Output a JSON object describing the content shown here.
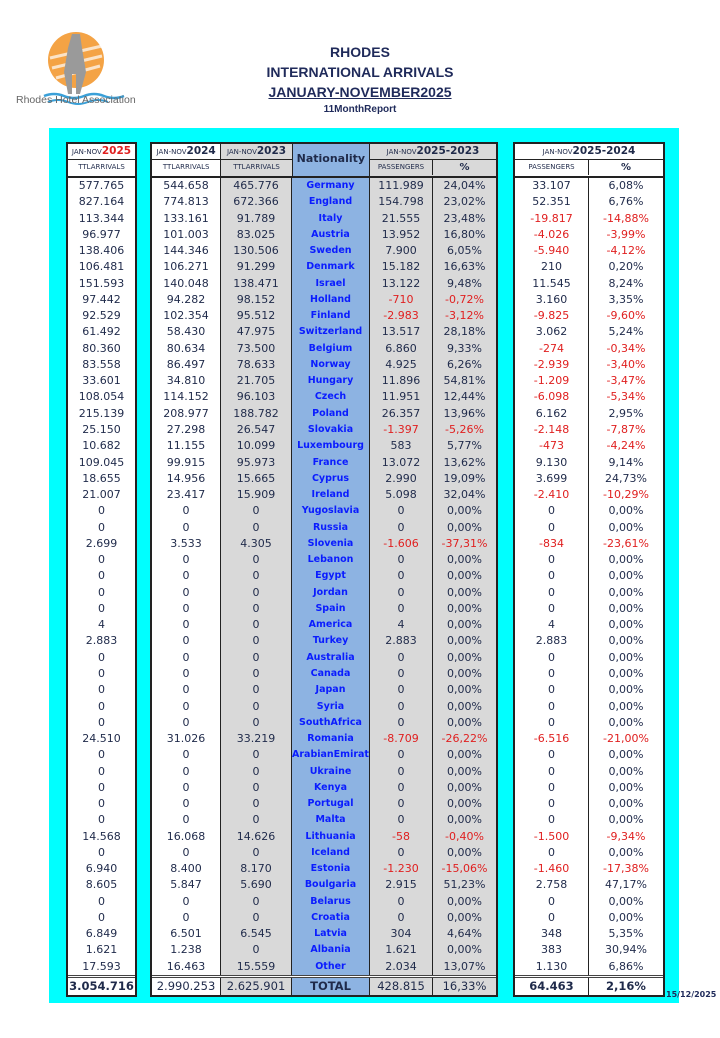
{
  "header": {
    "logo_text": "Rhodes Hotel Association",
    "title1": "RHODES",
    "title2": "INTERNATIONAL ARRIVALS",
    "title3": "JANUARY-NOVEMBER2025",
    "subtitle": "11MonthReport"
  },
  "columns": {
    "prefix": "JAN-NOV",
    "y2025": "2025",
    "y2024": "2024",
    "y2023": "2023",
    "ttl": "TTLARRIVALS",
    "nationality": "Nationality",
    "d2023": "2025-2023",
    "d2024": "2025-2024",
    "passengers": "PASSENGERS",
    "pct": "%"
  },
  "colors": {
    "accent_red": "#e02020",
    "panel": "#00ffff",
    "nationality_bg": "#8db3e2",
    "gray": "#d9d9d9"
  },
  "rows": [
    [
      "577.765",
      "544.658",
      "465.776",
      "Germany",
      "111.989",
      "24,04%",
      "33.107",
      "6,08%"
    ],
    [
      "827.164",
      "774.813",
      "672.366",
      "England",
      "154.798",
      "23,02%",
      "52.351",
      "6,76%"
    ],
    [
      "113.344",
      "133.161",
      "91.789",
      "Italy",
      "21.555",
      "23,48%",
      "-19.817",
      "-14,88%"
    ],
    [
      "96.977",
      "101.003",
      "83.025",
      "Austria",
      "13.952",
      "16,80%",
      "-4.026",
      "-3,99%"
    ],
    [
      "138.406",
      "144.346",
      "130.506",
      "Sweden",
      "7.900",
      "6,05%",
      "-5.940",
      "-4,12%"
    ],
    [
      "106.481",
      "106.271",
      "91.299",
      "Denmark",
      "15.182",
      "16,63%",
      "210",
      "0,20%"
    ],
    [
      "151.593",
      "140.048",
      "138.471",
      "Israel",
      "13.122",
      "9,48%",
      "11.545",
      "8,24%"
    ],
    [
      "97.442",
      "94.282",
      "98.152",
      "Holland",
      "-710",
      "-0,72%",
      "3.160",
      "3,35%"
    ],
    [
      "92.529",
      "102.354",
      "95.512",
      "Finland",
      "-2.983",
      "-3,12%",
      "-9.825",
      "-9,60%"
    ],
    [
      "61.492",
      "58.430",
      "47.975",
      "Switzerland",
      "13.517",
      "28,18%",
      "3.062",
      "5,24%"
    ],
    [
      "80.360",
      "80.634",
      "73.500",
      "Belgium",
      "6.860",
      "9,33%",
      "-274",
      "-0,34%"
    ],
    [
      "83.558",
      "86.497",
      "78.633",
      "Norway",
      "4.925",
      "6,26%",
      "-2.939",
      "-3,40%"
    ],
    [
      "33.601",
      "34.810",
      "21.705",
      "Hungary",
      "11.896",
      "54,81%",
      "-1.209",
      "-3,47%"
    ],
    [
      "108.054",
      "114.152",
      "96.103",
      "Czech",
      "11.951",
      "12,44%",
      "-6.098",
      "-5,34%"
    ],
    [
      "215.139",
      "208.977",
      "188.782",
      "Poland",
      "26.357",
      "13,96%",
      "6.162",
      "2,95%"
    ],
    [
      "25.150",
      "27.298",
      "26.547",
      "Slovakia",
      "-1.397",
      "-5,26%",
      "-2.148",
      "-7,87%"
    ],
    [
      "10.682",
      "11.155",
      "10.099",
      "Luxembourg",
      "583",
      "5,77%",
      "-473",
      "-4,24%"
    ],
    [
      "109.045",
      "99.915",
      "95.973",
      "France",
      "13.072",
      "13,62%",
      "9.130",
      "9,14%"
    ],
    [
      "18.655",
      "14.956",
      "15.665",
      "Cyprus",
      "2.990",
      "19,09%",
      "3.699",
      "24,73%"
    ],
    [
      "21.007",
      "23.417",
      "15.909",
      "Ireland",
      "5.098",
      "32,04%",
      "-2.410",
      "-10,29%"
    ],
    [
      "0",
      "0",
      "0",
      "Yugoslavia",
      "0",
      "0,00%",
      "0",
      "0,00%"
    ],
    [
      "0",
      "0",
      "0",
      "Russia",
      "0",
      "0,00%",
      "0",
      "0,00%"
    ],
    [
      "2.699",
      "3.533",
      "4.305",
      "Slovenia",
      "-1.606",
      "-37,31%",
      "-834",
      "-23,61%"
    ],
    [
      "0",
      "0",
      "0",
      "Lebanon",
      "0",
      "0,00%",
      "0",
      "0,00%"
    ],
    [
      "0",
      "0",
      "0",
      "Egypt",
      "0",
      "0,00%",
      "0",
      "0,00%"
    ],
    [
      "0",
      "0",
      "0",
      "Jordan",
      "0",
      "0,00%",
      "0",
      "0,00%"
    ],
    [
      "0",
      "0",
      "0",
      "Spain",
      "0",
      "0,00%",
      "0",
      "0,00%"
    ],
    [
      "4",
      "0",
      "0",
      "America",
      "4",
      "0,00%",
      "4",
      "0,00%"
    ],
    [
      "2.883",
      "0",
      "0",
      "Turkey",
      "2.883",
      "0,00%",
      "2.883",
      "0,00%"
    ],
    [
      "0",
      "0",
      "0",
      "Australia",
      "0",
      "0,00%",
      "0",
      "0,00%"
    ],
    [
      "0",
      "0",
      "0",
      "Canada",
      "0",
      "0,00%",
      "0",
      "0,00%"
    ],
    [
      "0",
      "0",
      "0",
      "Japan",
      "0",
      "0,00%",
      "0",
      "0,00%"
    ],
    [
      "0",
      "0",
      "0",
      "Syria",
      "0",
      "0,00%",
      "0",
      "0,00%"
    ],
    [
      "0",
      "0",
      "0",
      "SouthAfrica",
      "0",
      "0,00%",
      "0",
      "0,00%"
    ],
    [
      "24.510",
      "31.026",
      "33.219",
      "Romania",
      "-8.709",
      "-26,22%",
      "-6.516",
      "-21,00%"
    ],
    [
      "0",
      "0",
      "0",
      "ArabianEmirates",
      "0",
      "0,00%",
      "0",
      "0,00%"
    ],
    [
      "0",
      "0",
      "0",
      "Ukraine",
      "0",
      "0,00%",
      "0",
      "0,00%"
    ],
    [
      "0",
      "0",
      "0",
      "Kenya",
      "0",
      "0,00%",
      "0",
      "0,00%"
    ],
    [
      "0",
      "0",
      "0",
      "Portugal",
      "0",
      "0,00%",
      "0",
      "0,00%"
    ],
    [
      "0",
      "0",
      "0",
      "Malta",
      "0",
      "0,00%",
      "0",
      "0,00%"
    ],
    [
      "14.568",
      "16.068",
      "14.626",
      "Lithuania",
      "-58",
      "-0,40%",
      "-1.500",
      "-9,34%"
    ],
    [
      "0",
      "0",
      "0",
      "Iceland",
      "0",
      "0,00%",
      "0",
      "0,00%"
    ],
    [
      "6.940",
      "8.400",
      "8.170",
      "Estonia",
      "-1.230",
      "-15,06%",
      "-1.460",
      "-17,38%"
    ],
    [
      "8.605",
      "5.847",
      "5.690",
      "Boulgaria",
      "2.915",
      "51,23%",
      "2.758",
      "47,17%"
    ],
    [
      "0",
      "0",
      "0",
      "Belarus",
      "0",
      "0,00%",
      "0",
      "0,00%"
    ],
    [
      "0",
      "0",
      "0",
      "Croatia",
      "0",
      "0,00%",
      "0",
      "0,00%"
    ],
    [
      "6.849",
      "6.501",
      "6.545",
      "Latvia",
      "304",
      "4,64%",
      "348",
      "5,35%"
    ],
    [
      "1.621",
      "1.238",
      "0",
      "Albania",
      "1.621",
      "0,00%",
      "383",
      "30,94%"
    ],
    [
      "17.593",
      "16.463",
      "15.559",
      "Other",
      "2.034",
      "13,07%",
      "1.130",
      "6,86%"
    ]
  ],
  "total": [
    "3.054.716",
    "2.990.253",
    "2.625.901",
    "TOTAL",
    "428.815",
    "16,33%",
    "64.463",
    "2,16%"
  ],
  "footer": {
    "date": "15/12/2025"
  }
}
